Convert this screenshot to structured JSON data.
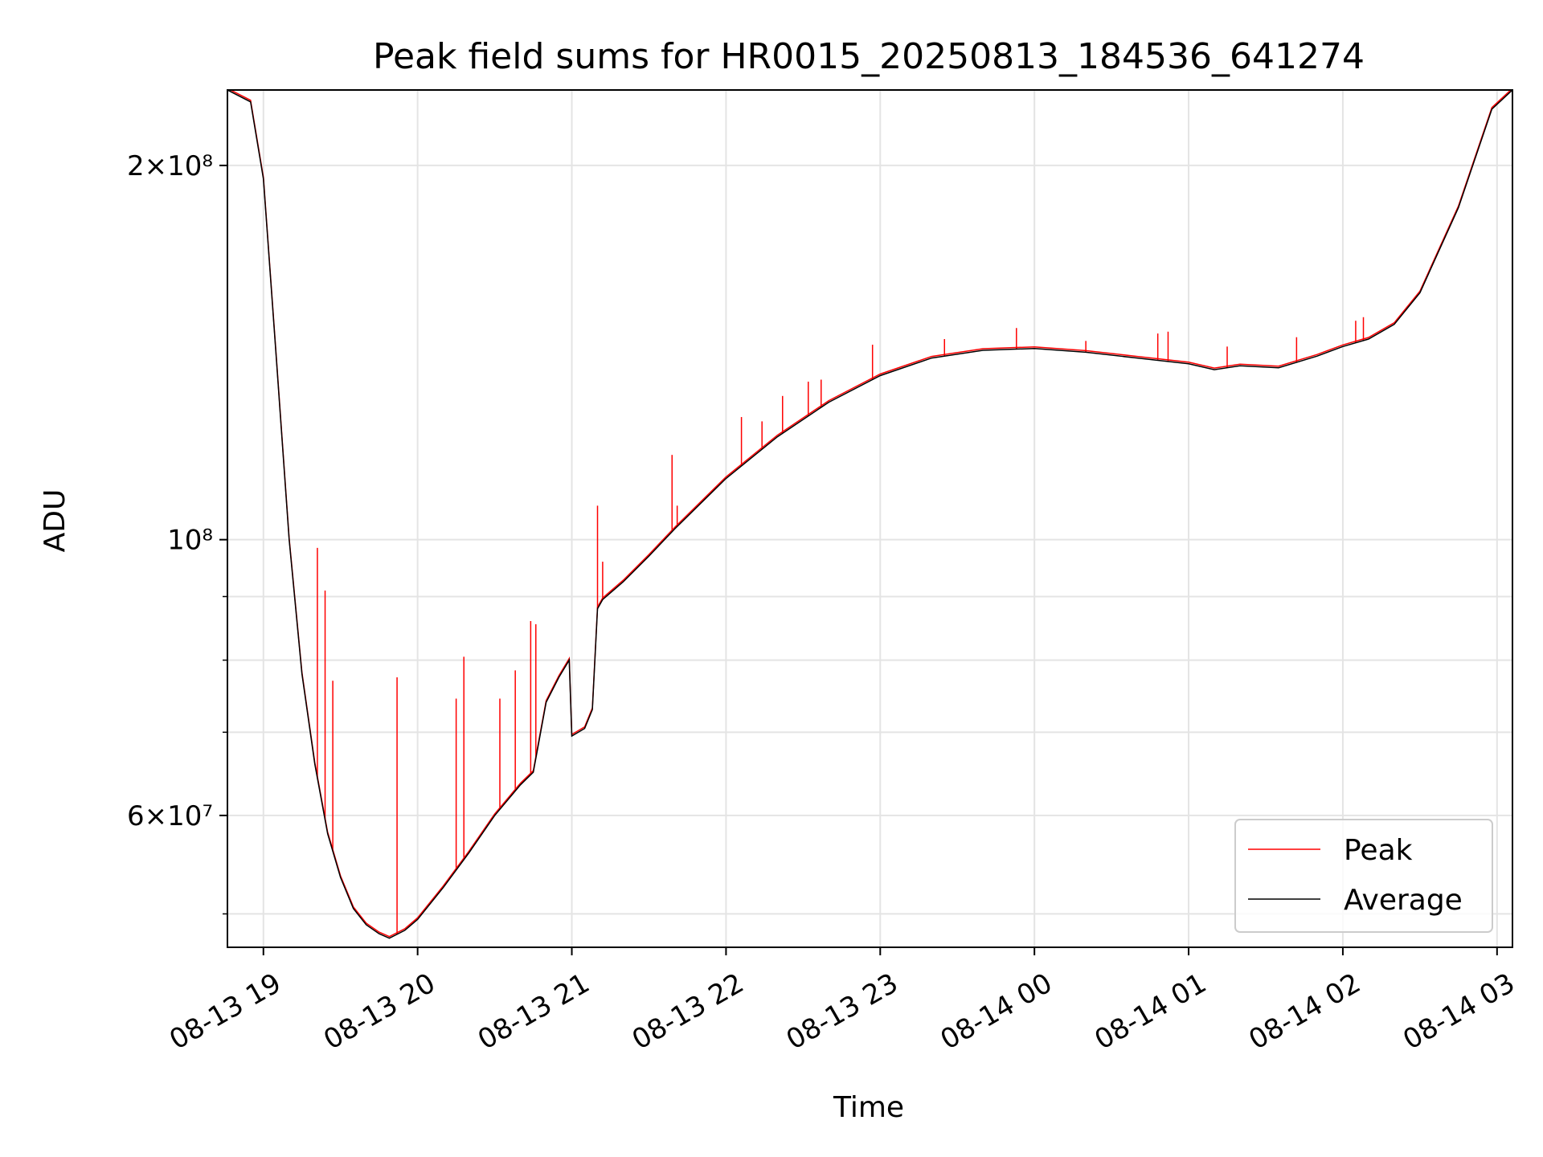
{
  "chart_data": {
    "type": "line",
    "title": "Peak field sums for HR0015_20250813_184536_641274",
    "xlabel": "Time",
    "ylabel": "ADU",
    "yscale": "log",
    "ylim": [
      47000000,
      230000000
    ],
    "xlim": [
      "2025-08-13T18:46",
      "2025-08-14T03:06"
    ],
    "x_tick_labels": [
      "08-13 19",
      "08-13 20",
      "08-13 21",
      "08-13 22",
      "08-13 23",
      "08-14 00",
      "08-14 01",
      "08-14 02",
      "08-14 03"
    ],
    "y_tick_labels": [
      {
        "value": 200000000,
        "label": "2×10⁸"
      },
      {
        "value": 100000000,
        "label": "10⁸"
      },
      {
        "value": 60000000,
        "label": "6×10⁷"
      }
    ],
    "y_minor_ticks": [
      50000000,
      70000000,
      80000000,
      90000000
    ],
    "grid": true,
    "legend_position": "lower-right",
    "colors": {
      "peak": "#ff0000",
      "average": "#000000"
    },
    "series": [
      {
        "name": "Average",
        "x": [
          "2025-08-13T18:46",
          "2025-08-13T18:55",
          "2025-08-13T19:00",
          "2025-08-13T19:05",
          "2025-08-13T19:10",
          "2025-08-13T19:15",
          "2025-08-13T19:20",
          "2025-08-13T19:25",
          "2025-08-13T19:30",
          "2025-08-13T19:35",
          "2025-08-13T19:40",
          "2025-08-13T19:45",
          "2025-08-13T19:49",
          "2025-08-13T19:55",
          "2025-08-13T20:00",
          "2025-08-13T20:10",
          "2025-08-13T20:20",
          "2025-08-13T20:30",
          "2025-08-13T20:40",
          "2025-08-13T20:45",
          "2025-08-13T20:50",
          "2025-08-13T20:55",
          "2025-08-13T20:59",
          "2025-08-13T21:00",
          "2025-08-13T21:05",
          "2025-08-13T21:08",
          "2025-08-13T21:10",
          "2025-08-13T21:12",
          "2025-08-13T21:20",
          "2025-08-13T21:30",
          "2025-08-13T21:40",
          "2025-08-13T22:00",
          "2025-08-13T22:20",
          "2025-08-13T22:40",
          "2025-08-13T23:00",
          "2025-08-13T23:20",
          "2025-08-13T23:40",
          "2025-08-14T00:00",
          "2025-08-14T00:20",
          "2025-08-14T00:40",
          "2025-08-14T01:00",
          "2025-08-14T01:10",
          "2025-08-14T01:20",
          "2025-08-14T01:35",
          "2025-08-14T01:50",
          "2025-08-14T02:00",
          "2025-08-14T02:10",
          "2025-08-14T02:20",
          "2025-08-14T02:30",
          "2025-08-14T02:45",
          "2025-08-14T02:58",
          "2025-08-14T03:06"
        ],
        "y": [
          230000000,
          225000000,
          195000000,
          140000000,
          100000000,
          78000000,
          66000000,
          58000000,
          53500000,
          50500000,
          49000000,
          48200000,
          47800000,
          48500000,
          49500000,
          52500000,
          56000000,
          60000000,
          63500000,
          65000000,
          74000000,
          77500000,
          80000000,
          69500000,
          70500000,
          73000000,
          88000000,
          89500000,
          92500000,
          97000000,
          102000000,
          112000000,
          121000000,
          129000000,
          135500000,
          140000000,
          142000000,
          142500000,
          141500000,
          140000000,
          138500000,
          137000000,
          138000000,
          137500000,
          140500000,
          143000000,
          145000000,
          149000000,
          158000000,
          185000000,
          222000000,
          230000000
        ]
      },
      {
        "name": "Peak",
        "x": [
          "2025-08-13T19:21",
          "2025-08-13T19:24",
          "2025-08-13T19:27",
          "2025-08-13T19:52",
          "2025-08-13T20:15",
          "2025-08-13T20:18",
          "2025-08-13T20:32",
          "2025-08-13T20:38",
          "2025-08-13T20:44",
          "2025-08-13T20:46",
          "2025-08-13T21:10",
          "2025-08-13T21:12",
          "2025-08-13T21:39",
          "2025-08-13T21:41",
          "2025-08-13T22:06",
          "2025-08-13T22:14",
          "2025-08-13T22:22",
          "2025-08-13T22:32",
          "2025-08-13T22:37",
          "2025-08-13T22:57",
          "2025-08-13T23:25",
          "2025-08-13T23:53",
          "2025-08-14T00:20",
          "2025-08-14T00:48",
          "2025-08-14T00:52",
          "2025-08-14T01:15",
          "2025-08-14T01:42",
          "2025-08-14T02:05",
          "2025-08-14T02:08"
        ],
        "y": [
          98500000,
          91000000,
          77000000,
          77500000,
          74500000,
          80500000,
          74500000,
          78500000,
          86000000,
          85500000,
          106500000,
          96000000,
          117000000,
          106500000,
          125500000,
          124500000,
          130500000,
          134000000,
          134500000,
          143500000,
          145000000,
          148000000,
          144500000,
          146500000,
          147000000,
          143000000,
          145500000,
          150000000,
          151000000
        ]
      }
    ],
    "legend": [
      "Peak",
      "Average"
    ]
  }
}
